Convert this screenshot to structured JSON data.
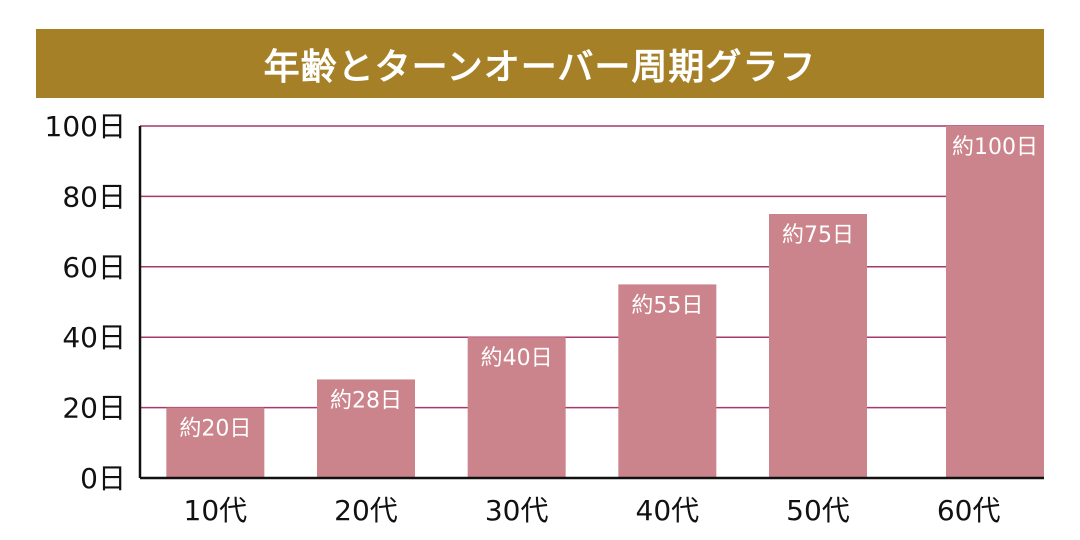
{
  "chart_data": {
    "type": "bar",
    "title": "年齢とターンオーバー周期グラフ",
    "categories": [
      "10代",
      "20代",
      "30代",
      "40代",
      "50代",
      "60代"
    ],
    "values": [
      20,
      28,
      40,
      55,
      75,
      100
    ],
    "data_labels": [
      "約20日",
      "約28日",
      "約40日",
      "約55日",
      "約75日",
      "約100日"
    ],
    "y_ticks": [
      0,
      20,
      40,
      60,
      80,
      100
    ],
    "y_tick_labels": [
      "0日",
      "20日",
      "40日",
      "60日",
      "80日",
      "100日"
    ],
    "ylim": [
      0,
      100
    ],
    "xlabel": "",
    "ylabel": "",
    "grid": true,
    "colors": {
      "title_bg": "#a58026",
      "bar": "#cc848c",
      "grid": "#a8386a",
      "axis": "#111111"
    }
  }
}
